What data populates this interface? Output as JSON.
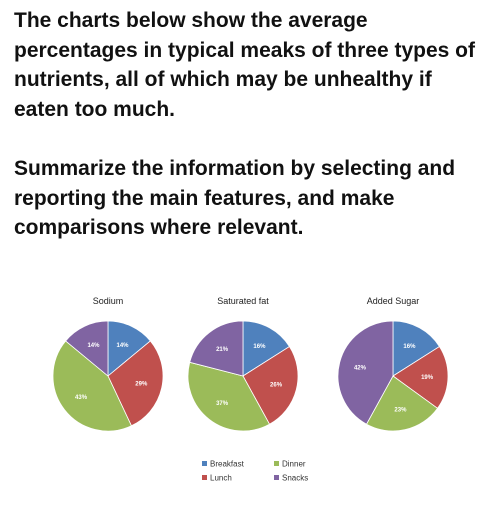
{
  "prompt": {
    "paragraph1": "The charts below show the average percentages in typical meaks of three types of nutrients, all of which may be unhealthy if eaten too much.",
    "paragraph2": "Summarize the information by selecting and reporting the main features, and make comparisons where relevant."
  },
  "colors": {
    "Breakfast": "#4f81bd",
    "Lunch": "#c0504d",
    "Dinner": "#9bbb59",
    "Snacks": "#8064a2"
  },
  "chart_data": [
    {
      "type": "pie",
      "title": "Sodium",
      "labels": [
        "Breakfast",
        "Lunch",
        "Dinner",
        "Snacks"
      ],
      "values": [
        14,
        29,
        43,
        14
      ],
      "data_labels": [
        "14%",
        "29%",
        "43%",
        "14%"
      ]
    },
    {
      "type": "pie",
      "title": "Saturated fat",
      "labels": [
        "Breakfast",
        "Lunch",
        "Dinner",
        "Snacks"
      ],
      "values": [
        16,
        26,
        37,
        21
      ],
      "data_labels": [
        "16%",
        "26%",
        "37%",
        "21%"
      ]
    },
    {
      "type": "pie",
      "title": "Added Sugar",
      "labels": [
        "Breakfast",
        "Lunch",
        "Dinner",
        "Snacks"
      ],
      "values": [
        16,
        19,
        23,
        42
      ],
      "data_labels": [
        "16%",
        "19%",
        "23%",
        "42%"
      ]
    }
  ],
  "legend": {
    "placement": "bottom",
    "items": [
      "Breakfast",
      "Lunch",
      "Dinner",
      "Snacks"
    ]
  }
}
